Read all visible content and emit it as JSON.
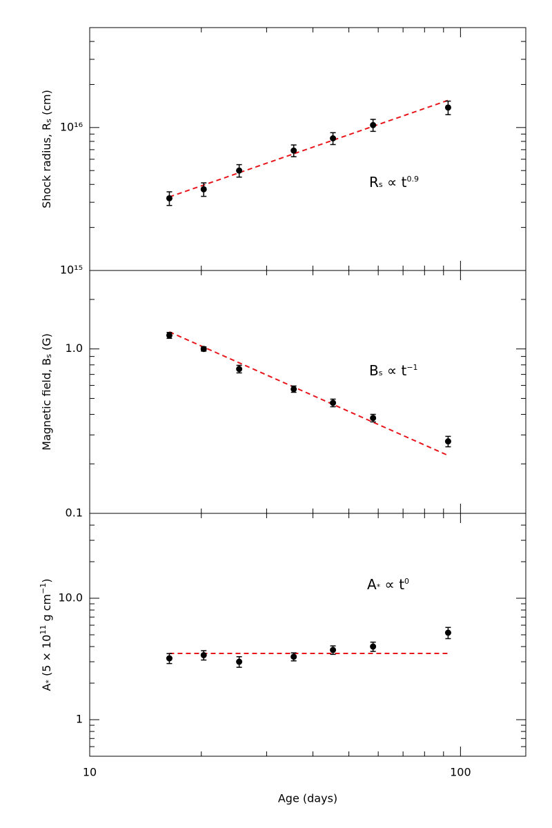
{
  "chart_data": [
    {
      "type": "scatter",
      "xlog": true,
      "ylog": true,
      "xlim": [
        10,
        150
      ],
      "ylim": [
        1000000000000000.0,
        5e+16
      ],
      "yticks": [
        {
          "value": 1000000000000000.0,
          "label": "10¹⁵"
        },
        {
          "value": 1e+16,
          "label": "10¹⁶"
        }
      ],
      "yminor": [
        2000000000000000.0,
        3000000000000000.0,
        4000000000000000.0,
        5000000000000000.0,
        6000000000000000.0,
        7000000000000000.0,
        8000000000000000.0,
        9000000000000000.0,
        2e+16,
        3e+16,
        4e+16
      ],
      "ylabel": [
        {
          "t": "Shock radius, R"
        },
        {
          "t": "s",
          "sub": true
        },
        {
          "t": " (cm)"
        }
      ],
      "annotation": [
        {
          "t": "R"
        },
        {
          "t": "s",
          "sub": true
        },
        {
          "t": "  ∝  t"
        },
        {
          "t": "0.9",
          "sup": true
        }
      ],
      "x": [
        16.4,
        20.3,
        25.3,
        35.5,
        45.3,
        58.1,
        92.6
      ],
      "series": [
        {
          "color": "#000000",
          "values": [
            3200000000000000.0,
            3700000000000000.0,
            5000000000000000.0,
            6900000000000000.0,
            8400000000000000.0,
            1.04e+16,
            1.38e+16
          ],
          "errors": [
            350000000000000.0,
            400000000000000.0,
            500000000000000.0,
            650000000000000.0,
            800000000000000.0,
            1000000000000000.0,
            1500000000000000.0
          ]
        }
      ],
      "fit": {
        "color": "#e8141a",
        "x": [
          16.4,
          92.6
        ],
        "y": [
          3270000000000000.0,
          1.55e+16
        ]
      }
    },
    {
      "type": "scatter",
      "xlog": true,
      "ylog": true,
      "xlim": [
        10,
        150
      ],
      "ylim": [
        0.1,
        3
      ],
      "yticks": [
        0.1,
        {
          "value": 1,
          "label": "1.0"
        }
      ],
      "yminor": [
        0.2,
        0.3,
        0.4,
        0.5,
        0.6,
        0.7,
        0.8,
        0.9,
        2
      ],
      "ylabel": [
        {
          "t": "Magnetic field, B"
        },
        {
          "t": "s",
          "sub": true
        },
        {
          "t": " (G)"
        }
      ],
      "annotation": [
        {
          "t": "B"
        },
        {
          "t": "s",
          "sub": true
        },
        {
          "t": "  ∝  t"
        },
        {
          "t": "−1",
          "sup": true
        }
      ],
      "x": [
        16.4,
        20.3,
        25.3,
        35.5,
        45.3,
        58.1,
        92.6
      ],
      "series": [
        {
          "color": "#000000",
          "values": [
            1.21,
            1.0,
            0.755,
            0.57,
            0.47,
            0.38,
            0.274
          ],
          "errors": [
            0.05,
            0.03,
            0.04,
            0.025,
            0.025,
            0.02,
            0.02
          ]
        }
      ],
      "fit": {
        "color": "#e8141a",
        "x": [
          16.4,
          92.6
        ],
        "y": [
          1.27,
          0.225
        ]
      }
    },
    {
      "type": "scatter",
      "xlog": true,
      "ylog": true,
      "xlim": [
        10,
        150
      ],
      "ylim": [
        0.5,
        50
      ],
      "xticks": [
        10,
        100
      ],
      "xminor": [
        20,
        30,
        40,
        50,
        60,
        70,
        80,
        90
      ],
      "xlabel": "Age (days)",
      "yticks": [
        1,
        {
          "value": 10,
          "label": "10.0"
        }
      ],
      "yminor": [
        0.6,
        0.7,
        0.8,
        0.9,
        2,
        3,
        4,
        5,
        6,
        7,
        8,
        9,
        20,
        30,
        40
      ],
      "ylabel": [
        {
          "t": "A"
        },
        {
          "t": "*",
          "sub": true
        },
        {
          "t": " (5 × 10"
        },
        {
          "t": "11",
          "sup": true
        },
        {
          "t": " g cm"
        },
        {
          "t": "−1",
          "sup": true
        },
        {
          "t": ")"
        }
      ],
      "annotation": [
        {
          "t": "A"
        },
        {
          "t": "*",
          "sub": true
        },
        {
          "t": "  ∝  t"
        },
        {
          "t": "0",
          "sup": true
        }
      ],
      "x": [
        16.4,
        20.3,
        25.3,
        35.5,
        45.3,
        58.1,
        92.6
      ],
      "series": [
        {
          "color": "#000000",
          "values": [
            3.2,
            3.4,
            3.0,
            3.3,
            3.75,
            4.0,
            5.2
          ],
          "errors": [
            0.3,
            0.3,
            0.3,
            0.25,
            0.3,
            0.35,
            0.55
          ]
        }
      ],
      "fit": {
        "color": "#e8141a",
        "x": [
          16.4,
          92.6
        ],
        "y": [
          3.51,
          3.51
        ]
      }
    }
  ]
}
